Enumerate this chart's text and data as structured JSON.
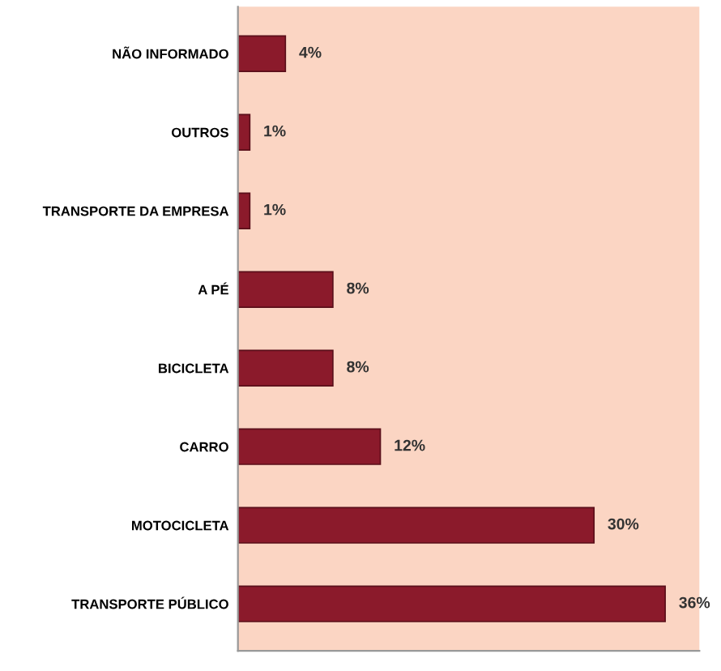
{
  "chart_data": {
    "type": "bar",
    "orientation": "horizontal",
    "categories": [
      "NÃO INFORMADO",
      "OUTROS",
      "TRANSPORTE DA EMPRESA",
      "A PÉ",
      "BICICLETA",
      "CARRO",
      "MOTOCICLETA",
      "TRANSPORTE PÚBLICO"
    ],
    "values": [
      4,
      1,
      1,
      8,
      8,
      12,
      30,
      36
    ],
    "value_labels": [
      "4%",
      "1%",
      "1%",
      "8%",
      "8%",
      "12%",
      "30%",
      "36%"
    ],
    "color": "#8b1a2b",
    "grid": false,
    "legend": false
  }
}
